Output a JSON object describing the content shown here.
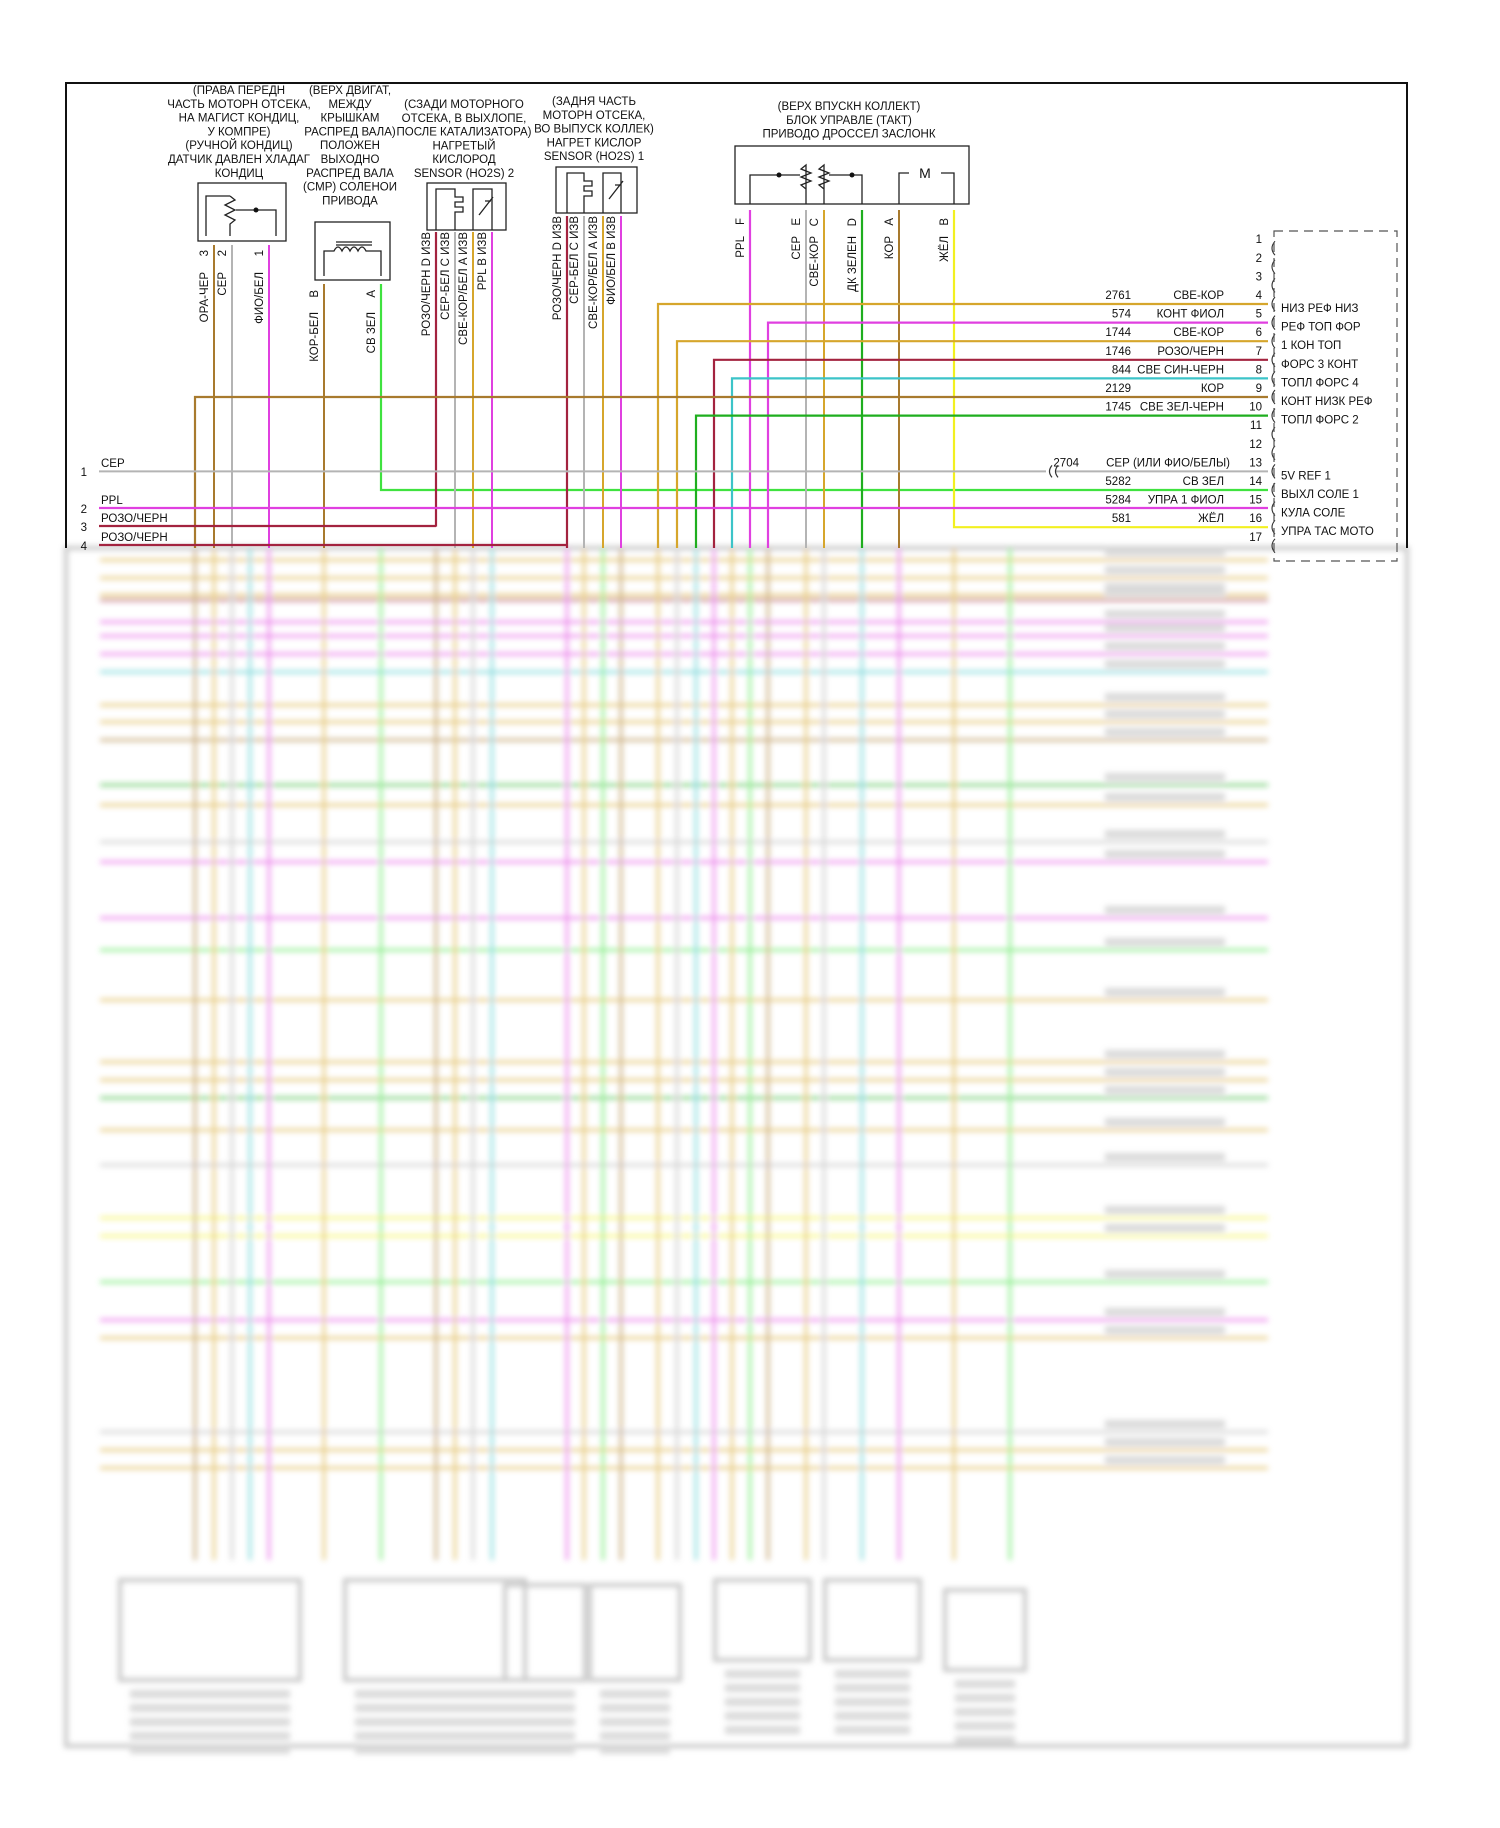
{
  "components": [
    {
      "name": "ac-pressure-sensor",
      "label_lines": [
        "(ПРАВА ПЕРЕДН",
        "ЧАСТЬ МОТОРН ОТСЕКА,",
        "НА МАГИСТ КОНДИЦ,",
        "У КОМПРЕ)",
        "(РУЧНОЙ КОНДИЦ)",
        "ДАТЧИК ДАВЛЕН ХЛАДАГ",
        "КОНДИЦ"
      ],
      "pins": [
        {
          "num": "3",
          "wire": "ОРА-ЧЕР"
        },
        {
          "num": "2",
          "wire": "СЕР"
        },
        {
          "num": "1",
          "wire": "ФИО/БЕЛ"
        }
      ]
    },
    {
      "name": "cmp-solenoid",
      "label_lines": [
        "(ВЕРХ ДВИГАТ,",
        "МЕЖДУ",
        "КРЫШКАМ",
        "РАСПРЕД ВАЛА)",
        "ПОЛОЖЕН",
        "ВЫХОДНО",
        "РАСПРЕД ВАЛА",
        "(CMP) СОЛЕНОИ",
        "ПРИВОДА"
      ],
      "pins": [
        {
          "num": "B",
          "wire": "КОР-БЕЛ"
        },
        {
          "num": "A",
          "wire": "СВ ЗЕЛ"
        }
      ]
    },
    {
      "name": "ho2s-2",
      "label_lines": [
        "(СЗАДИ МОТОРНОГО",
        "ОТСЕКА, В ВЫХЛОПЕ,",
        "ПОСЛЕ КАТАЛИЗАТОРА)",
        "НАГРЕТЫЙ",
        "КИСЛОРОД",
        "SENSOR (HO2S) 2"
      ],
      "pins": [
        {
          "num": "D",
          "wire": "РОЗО/ЧЕРН D ИЗВ"
        },
        {
          "num": "C",
          "wire": "СЕР-БЕЛ C ИЗВ"
        },
        {
          "num": "A",
          "wire": "СВЕ-КОР/БЕЛ A ИЗВ"
        },
        {
          "num": "B",
          "wire": "PPL B ИЗВ"
        }
      ]
    },
    {
      "name": "ho2s-1",
      "label_lines": [
        "(ЗАДНЯ ЧАСТЬ",
        "МОТОРН ОТСЕКА,",
        "ВО ВЫПУСК КОЛЛЕК)",
        "НАГРЕТ КИСЛОР",
        "SENSOR (HO2S) 1"
      ],
      "pins": [
        {
          "num": "D",
          "wire": "РОЗО/ЧЕРН D ИЗВ"
        },
        {
          "num": "C",
          "wire": "СЕР-БЕЛ C ИЗВ"
        },
        {
          "num": "A",
          "wire": "СВЕ-КОР/БЕЛ A ИЗВ"
        },
        {
          "num": "B",
          "wire": "ФИО/БЕЛ B ИЗВ"
        }
      ]
    },
    {
      "name": "throttle-actuator",
      "label_lines": [
        "(ВЕРХ ВПУСКН КОЛЛЕКТ)",
        "БЛОК УПРАВЛЕ (ТАКТ)",
        "ПРИВОДО ДРОССЕЛ ЗАСЛОНК"
      ],
      "motor": "M",
      "pins": [
        {
          "num": "F",
          "wire": "PPL"
        },
        {
          "num": "E",
          "wire": "СЕР"
        },
        {
          "num": "C",
          "wire": "СВЕ-КОР"
        },
        {
          "num": "D",
          "wire": "ДК ЗЕЛЕН"
        },
        {
          "num": "A",
          "wire": "КОР"
        },
        {
          "num": "B",
          "wire": "ЖЁЛ"
        }
      ]
    }
  ],
  "ecm_rows": [
    {
      "pin": "1"
    },
    {
      "pin": "2"
    },
    {
      "pin": "3"
    },
    {
      "pin": "4",
      "circuit": "2761",
      "color": "СВЕ-КОР",
      "function": "НИЗ РЕФ НИЗ"
    },
    {
      "pin": "5",
      "circuit": "574",
      "color": "КОНТ ФИОЛ",
      "function": "РЕФ ТОП ФОР"
    },
    {
      "pin": "6",
      "circuit": "1744",
      "color": "СВЕ-КОР",
      "function": "1 КОН ТОП"
    },
    {
      "pin": "7",
      "circuit": "1746",
      "color": "РОЗО/ЧЕРН",
      "function": "ФОРС 3 КОНТ"
    },
    {
      "pin": "8",
      "circuit": "844",
      "color": "СВЕ СИН-ЧЕРН",
      "function": "ТОПЛ ФОРС 4"
    },
    {
      "pin": "9",
      "circuit": "2129",
      "color": "КОР",
      "function": "КОНТ НИЗК РЕФ"
    },
    {
      "pin": "10",
      "circuit": "1745",
      "color": "СВЕ ЗЕЛ-ЧЕРН",
      "function": "ТОПЛ ФОРС 2"
    },
    {
      "pin": "11"
    },
    {
      "pin": "12"
    },
    {
      "pin": "13",
      "circuit": "2704",
      "color": "СЕР (ИЛИ ФИО/БЕЛЫ)",
      "function": "5V REF 1"
    },
    {
      "pin": "14",
      "circuit": "5282",
      "color": "СВ ЗЕЛ",
      "function": "ВЫХЛ СОЛЕ 1"
    },
    {
      "pin": "15",
      "circuit": "5284",
      "color": "УПРА 1 ФИОЛ",
      "function": "КУЛА СОЛЕ"
    },
    {
      "pin": "16",
      "circuit": "581",
      "color": "ЖЁЛ",
      "function": "УПРА ТАС МОТО"
    },
    {
      "pin": "17"
    }
  ],
  "left_rows": [
    {
      "pin": "1",
      "color": "СЕР"
    },
    {
      "pin": "2",
      "color": "PPL"
    },
    {
      "pin": "3",
      "color": "РОЗО/ЧЕРН"
    },
    {
      "pin": "4",
      "color": "РОЗО/ЧЕРН"
    }
  ],
  "wire_colors": {
    "tan": "#d6a62c",
    "brown": "#a87a2e",
    "magenta": "#e040e0",
    "darkred": "#a3233f",
    "cyan": "#3cc4c8",
    "green": "#1fae1f",
    "lime": "#3fe23f",
    "grey": "#b4b4b4",
    "yellow": "#f2f020"
  }
}
